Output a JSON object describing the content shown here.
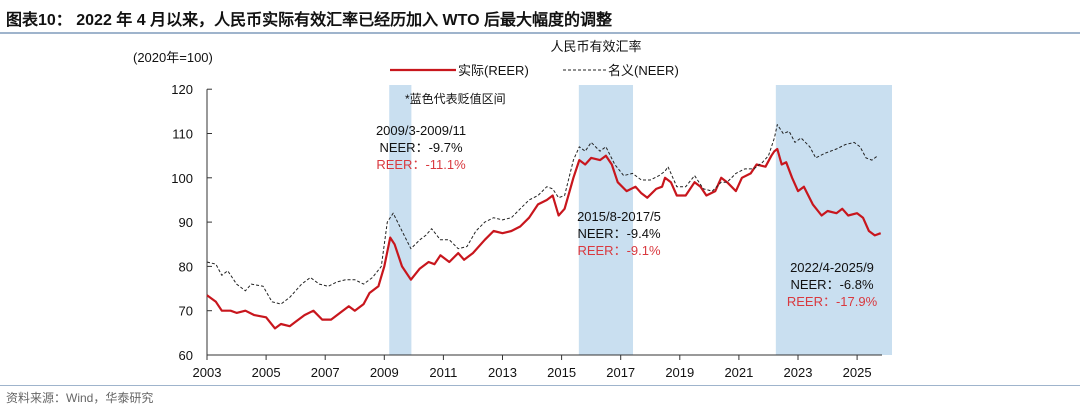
{
  "title": "图表10：  2022 年 4 月以来，人民币实际有效汇率已经历加入 WTO 后最大幅度的调整",
  "source": "资料来源：Wind，华泰研究",
  "chart_data": {
    "type": "line",
    "title": "人民币有效汇率",
    "unit_label": "(2020年=100)",
    "note": "*蓝色代表贬值区间",
    "xlim": [
      2003,
      2025.9
    ],
    "ylim": [
      60,
      120
    ],
    "x_ticks": [
      "2003",
      "2005",
      "2007",
      "2009",
      "2011",
      "2013",
      "2015",
      "2017",
      "2019",
      "2021",
      "2023",
      "2025"
    ],
    "y_ticks": [
      "60",
      "70",
      "80",
      "90",
      "100",
      "110",
      "120"
    ],
    "legend_position": "top-right",
    "grid": false,
    "colors": {
      "reer": "#c8161d",
      "neer": "#222222",
      "shade": "#c9dff0",
      "annot_red": "#d9393f"
    },
    "shaded_periods": [
      {
        "start": "2009/3",
        "end": "2009/11",
        "label": "2009/3-2009/11",
        "neer": "NEER：-9.7%",
        "reer": "REER：-11.1%"
      },
      {
        "start": "2015/8",
        "end": "2017/5",
        "label": "2015/8-2017/5",
        "neer": "NEER：-9.4%",
        "reer": "REER：-9.1%"
      },
      {
        "start": "2022/4",
        "end": "2025/9",
        "label": "2022/4-2025/9",
        "neer": "NEER：-6.8%",
        "reer": "REER：-17.9%"
      }
    ],
    "series": [
      {
        "name": "实际(REER)",
        "style": "solid",
        "points": [
          [
            2003.0,
            73.5
          ],
          [
            2003.3,
            72
          ],
          [
            2003.5,
            70
          ],
          [
            2003.8,
            70
          ],
          [
            2004.0,
            69.5
          ],
          [
            2004.3,
            70
          ],
          [
            2004.6,
            69
          ],
          [
            2005.0,
            68.5
          ],
          [
            2005.3,
            66
          ],
          [
            2005.5,
            67
          ],
          [
            2005.8,
            66.5
          ],
          [
            2006.0,
            67.5
          ],
          [
            2006.3,
            69
          ],
          [
            2006.6,
            70
          ],
          [
            2006.9,
            68
          ],
          [
            2007.2,
            68
          ],
          [
            2007.5,
            69.5
          ],
          [
            2007.8,
            71
          ],
          [
            2008.0,
            70
          ],
          [
            2008.3,
            71.5
          ],
          [
            2008.5,
            74
          ],
          [
            2008.8,
            75.5
          ],
          [
            2009.0,
            80
          ],
          [
            2009.2,
            86.5
          ],
          [
            2009.35,
            85
          ],
          [
            2009.6,
            80
          ],
          [
            2009.9,
            77
          ],
          [
            2010.2,
            79.5
          ],
          [
            2010.5,
            81
          ],
          [
            2010.7,
            80.5
          ],
          [
            2010.9,
            82.5
          ],
          [
            2011.2,
            81
          ],
          [
            2011.5,
            83
          ],
          [
            2011.7,
            81.5
          ],
          [
            2012.0,
            83
          ],
          [
            2012.4,
            86
          ],
          [
            2012.7,
            88
          ],
          [
            2013.0,
            87.5
          ],
          [
            2013.3,
            88
          ],
          [
            2013.6,
            89
          ],
          [
            2013.9,
            91
          ],
          [
            2014.2,
            94
          ],
          [
            2014.5,
            95
          ],
          [
            2014.7,
            96
          ],
          [
            2014.9,
            91.5
          ],
          [
            2015.1,
            93
          ],
          [
            2015.4,
            100
          ],
          [
            2015.6,
            104
          ],
          [
            2015.8,
            103
          ],
          [
            2016.0,
            104.5
          ],
          [
            2016.3,
            104
          ],
          [
            2016.5,
            105
          ],
          [
            2016.7,
            103
          ],
          [
            2016.9,
            99
          ],
          [
            2017.2,
            97
          ],
          [
            2017.5,
            98
          ],
          [
            2017.7,
            96.5
          ],
          [
            2017.9,
            95.5
          ],
          [
            2018.2,
            97.5
          ],
          [
            2018.4,
            98
          ],
          [
            2018.5,
            100
          ],
          [
            2018.7,
            99
          ],
          [
            2018.9,
            96
          ],
          [
            2019.2,
            96
          ],
          [
            2019.5,
            99
          ],
          [
            2019.7,
            98
          ],
          [
            2019.9,
            96
          ],
          [
            2020.2,
            97
          ],
          [
            2020.4,
            100
          ],
          [
            2020.6,
            99
          ],
          [
            2020.9,
            97
          ],
          [
            2021.1,
            100
          ],
          [
            2021.4,
            101
          ],
          [
            2021.6,
            103
          ],
          [
            2021.9,
            102.5
          ],
          [
            2022.1,
            105
          ],
          [
            2022.2,
            106
          ],
          [
            2022.3,
            106.5
          ],
          [
            2022.45,
            103
          ],
          [
            2022.6,
            103.5
          ],
          [
            2022.8,
            100
          ],
          [
            2023.0,
            97
          ],
          [
            2023.2,
            98
          ],
          [
            2023.5,
            94
          ],
          [
            2023.8,
            91.5
          ],
          [
            2024.0,
            92.5
          ],
          [
            2024.3,
            92
          ],
          [
            2024.5,
            93
          ],
          [
            2024.7,
            91.5
          ],
          [
            2025.0,
            92
          ],
          [
            2025.2,
            91
          ],
          [
            2025.4,
            88
          ],
          [
            2025.6,
            87
          ],
          [
            2025.8,
            87.5
          ]
        ]
      },
      {
        "name": "名义(NEER)",
        "style": "dashed",
        "points": [
          [
            2003.0,
            81
          ],
          [
            2003.3,
            80.5
          ],
          [
            2003.5,
            78
          ],
          [
            2003.7,
            79
          ],
          [
            2004.0,
            76
          ],
          [
            2004.3,
            74.5
          ],
          [
            2004.5,
            76
          ],
          [
            2004.9,
            75.5
          ],
          [
            2005.2,
            72
          ],
          [
            2005.5,
            71.5
          ],
          [
            2005.8,
            73
          ],
          [
            2006.2,
            76
          ],
          [
            2006.5,
            77.5
          ],
          [
            2006.8,
            76
          ],
          [
            2007.1,
            75.5
          ],
          [
            2007.4,
            76.5
          ],
          [
            2007.7,
            77
          ],
          [
            2008.0,
            77
          ],
          [
            2008.3,
            76
          ],
          [
            2008.6,
            77.5
          ],
          [
            2008.9,
            80
          ],
          [
            2009.0,
            85
          ],
          [
            2009.1,
            90
          ],
          [
            2009.3,
            92
          ],
          [
            2009.6,
            88
          ],
          [
            2009.9,
            84
          ],
          [
            2010.2,
            86
          ],
          [
            2010.4,
            87
          ],
          [
            2010.6,
            88.5
          ],
          [
            2010.9,
            86
          ],
          [
            2011.2,
            86
          ],
          [
            2011.5,
            84
          ],
          [
            2011.8,
            84.5
          ],
          [
            2012.1,
            88
          ],
          [
            2012.4,
            90
          ],
          [
            2012.7,
            91
          ],
          [
            2013.0,
            90.5
          ],
          [
            2013.3,
            91
          ],
          [
            2013.6,
            93
          ],
          [
            2013.9,
            95
          ],
          [
            2014.2,
            96
          ],
          [
            2014.5,
            98
          ],
          [
            2014.7,
            97.5
          ],
          [
            2014.9,
            95.5
          ],
          [
            2015.1,
            96
          ],
          [
            2015.4,
            104
          ],
          [
            2015.6,
            107
          ],
          [
            2015.8,
            106
          ],
          [
            2016.0,
            108
          ],
          [
            2016.3,
            106
          ],
          [
            2016.5,
            107
          ],
          [
            2016.8,
            103
          ],
          [
            2017.1,
            100.5
          ],
          [
            2017.4,
            101
          ],
          [
            2017.7,
            99.5
          ],
          [
            2018.0,
            99.5
          ],
          [
            2018.3,
            100.5
          ],
          [
            2018.5,
            101.5
          ],
          [
            2018.6,
            102.5
          ],
          [
            2018.9,
            98
          ],
          [
            2019.2,
            98
          ],
          [
            2019.5,
            100.5
          ],
          [
            2019.8,
            97.5
          ],
          [
            2020.1,
            97
          ],
          [
            2020.4,
            99
          ],
          [
            2020.6,
            99
          ],
          [
            2020.9,
            101
          ],
          [
            2021.2,
            102
          ],
          [
            2021.5,
            102
          ],
          [
            2021.8,
            103.5
          ],
          [
            2022.0,
            105
          ],
          [
            2022.2,
            109
          ],
          [
            2022.3,
            112
          ],
          [
            2022.5,
            110
          ],
          [
            2022.7,
            110.5
          ],
          [
            2022.9,
            108
          ],
          [
            2023.1,
            109
          ],
          [
            2023.4,
            107
          ],
          [
            2023.6,
            104.5
          ],
          [
            2023.9,
            105.5
          ],
          [
            2024.3,
            106.5
          ],
          [
            2024.6,
            107.5
          ],
          [
            2024.9,
            108
          ],
          [
            2025.1,
            107
          ],
          [
            2025.3,
            104.5
          ],
          [
            2025.5,
            104
          ],
          [
            2025.7,
            105
          ]
        ]
      }
    ]
  }
}
